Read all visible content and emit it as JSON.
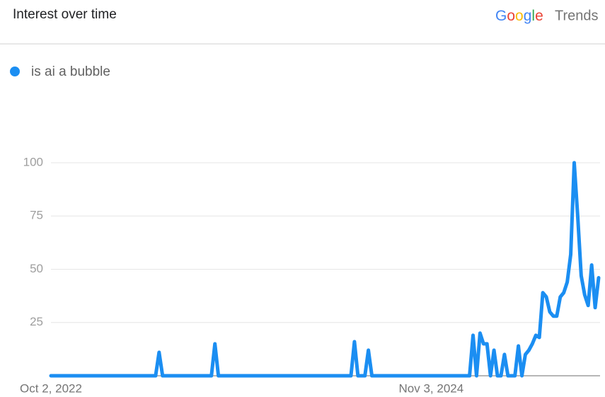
{
  "header": {
    "title": "Interest over time",
    "brand": "Google",
    "product": "Trends"
  },
  "chart_data": {
    "type": "line",
    "categories": [
      "Oct 2, 2022",
      null,
      null,
      null,
      null,
      null,
      null,
      null,
      null,
      null,
      null,
      null,
      null,
      null,
      null,
      null,
      null,
      null,
      null,
      null,
      null,
      null,
      null,
      null,
      null,
      null,
      null,
      null,
      null,
      null,
      null,
      null,
      null,
      null,
      null,
      null,
      null,
      null,
      null,
      null,
      null,
      null,
      null,
      null,
      null,
      null,
      null,
      null,
      null,
      null,
      null,
      null,
      null,
      null,
      null,
      null,
      null,
      null,
      null,
      null,
      null,
      null,
      null,
      null,
      null,
      null,
      null,
      null,
      null,
      null,
      null,
      null,
      null,
      null,
      null,
      null,
      null,
      null,
      null,
      null,
      null,
      null,
      null,
      null,
      null,
      null,
      null,
      null,
      null,
      null,
      null,
      null,
      null,
      null,
      null,
      null,
      null,
      null,
      null,
      null,
      null,
      null,
      null,
      null,
      null,
      null,
      null,
      null,
      null,
      "Nov 3, 2024",
      null,
      null,
      null,
      null,
      null,
      null,
      null,
      null,
      null,
      null,
      null,
      null,
      null,
      null,
      null,
      null,
      null,
      null,
      null,
      null,
      null,
      null,
      null,
      null,
      null,
      null,
      null,
      null,
      null,
      null,
      null,
      null,
      null,
      null,
      null,
      null,
      null,
      null,
      null,
      null,
      null,
      null,
      null,
      null,
      null,
      null,
      null,
      null
    ],
    "series": [
      {
        "name": "is ai a bubble",
        "color": "#1b8ef2",
        "values": [
          0,
          0,
          0,
          0,
          0,
          0,
          0,
          0,
          0,
          0,
          0,
          0,
          0,
          0,
          0,
          0,
          0,
          0,
          0,
          0,
          0,
          0,
          0,
          0,
          0,
          0,
          0,
          0,
          0,
          0,
          0,
          11,
          0,
          0,
          0,
          0,
          0,
          0,
          0,
          0,
          0,
          0,
          0,
          0,
          0,
          0,
          0,
          15,
          0,
          0,
          0,
          0,
          0,
          0,
          0,
          0,
          0,
          0,
          0,
          0,
          0,
          0,
          0,
          0,
          0,
          0,
          0,
          0,
          0,
          0,
          0,
          0,
          0,
          0,
          0,
          0,
          0,
          0,
          0,
          0,
          0,
          0,
          0,
          0,
          0,
          0,
          0,
          16,
          0,
          0,
          0,
          12,
          0,
          0,
          0,
          0,
          0,
          0,
          0,
          0,
          0,
          0,
          0,
          0,
          0,
          0,
          0,
          0,
          0,
          0,
          0,
          0,
          0,
          0,
          0,
          0,
          0,
          0,
          0,
          0,
          0,
          19,
          0,
          20,
          15,
          15,
          0,
          12,
          0,
          0,
          10,
          0,
          0,
          0,
          14,
          0,
          10,
          12,
          15,
          19,
          18,
          39,
          37,
          30,
          28,
          28,
          37,
          39,
          44,
          57,
          100,
          75,
          47,
          38,
          33,
          52,
          32,
          46
        ]
      }
    ],
    "ylim": [
      0,
      100
    ],
    "yticks": [
      25,
      50,
      75,
      100
    ],
    "grid": true
  }
}
